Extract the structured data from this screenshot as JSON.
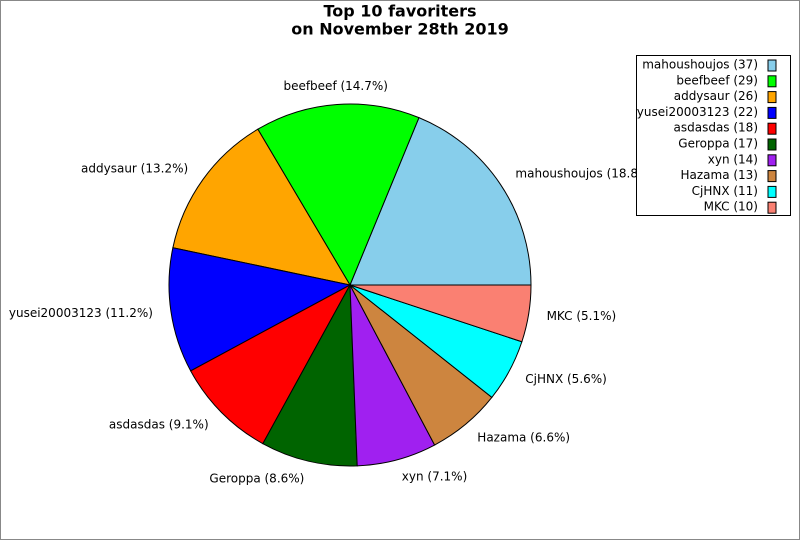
{
  "chart_data": {
    "type": "pie",
    "title": [
      "Top 10 favoriters",
      "on November 28th 2019"
    ],
    "categories": [
      "mahoushoujos",
      "beefbeef",
      "addysaur",
      "yusei20003123",
      "asdasdas",
      "Geroppa",
      "xyn",
      "Hazama",
      "CjHNX",
      "MKC"
    ],
    "values": [
      37,
      29,
      26,
      22,
      18,
      17,
      14,
      13,
      11,
      10
    ],
    "slice_labels": [
      "mahoushoujos (18.8%)",
      "beefbeef (14.7%)",
      "addysaur (13.2%)",
      "yusei20003123 (11.2%)",
      "asdasdas (9.1%)",
      "Geroppa (8.6%)",
      "xyn (7.1%)",
      "Hazama (6.6%)",
      "CjHNX (5.6%)",
      "MKC (5.1%)"
    ],
    "legend_labels": [
      "mahoushoujos (37)",
      "beefbeef (29)",
      "addysaur (26)",
      "yusei20003123 (22)",
      "asdasdas (18)",
      "Geroppa (17)",
      "xyn (14)",
      "Hazama (13)",
      "CjHNX (11)",
      "MKC (10)"
    ],
    "colors": [
      "#87ceeb",
      "#00ff00",
      "#ffa500",
      "#0000ff",
      "#ff0000",
      "#006400",
      "#a020f0",
      "#cd853f",
      "#00ffff",
      "#fa8072"
    ],
    "legend": "upper right"
  }
}
